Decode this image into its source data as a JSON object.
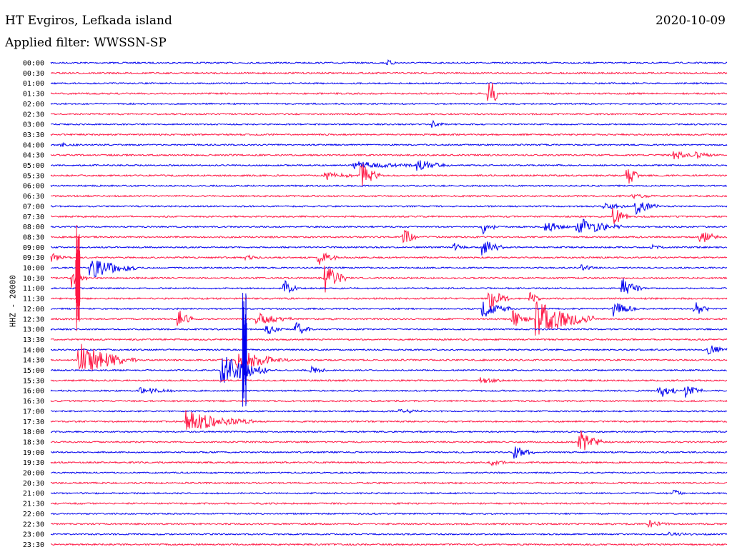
{
  "header": {
    "station": "HT Evgiros, Lefkada island",
    "date": "2020-10-09",
    "filter": "Applied filter: WWSSN-SP"
  },
  "colors": {
    "trace_a": "#0000ee",
    "trace_b": "#ff1744",
    "background": "#ffffff"
  },
  "chart_data": {
    "type": "line",
    "title": "HT Evgiros, Lefkada island",
    "date": "2020-10-09",
    "ylabel": "HHZ - 20000",
    "row_labels": [
      "00:00",
      "00:30",
      "01:00",
      "01:30",
      "02:00",
      "02:30",
      "03:00",
      "03:30",
      "04:00",
      "04:30",
      "05:00",
      "05:30",
      "06:00",
      "06:30",
      "07:00",
      "07:30",
      "08:00",
      "08:30",
      "09:00",
      "09:30",
      "10:00",
      "10:30",
      "11:00",
      "11:30",
      "12:00",
      "12:30",
      "13:00",
      "13:30",
      "14:00",
      "14:30",
      "15:00",
      "15:30",
      "16:00",
      "16:30",
      "17:00",
      "17:30",
      "18:00",
      "18:30",
      "19:00",
      "19:30",
      "20:00",
      "20:30",
      "21:00",
      "21:30",
      "22:00",
      "22:30",
      "23:00",
      "23:30"
    ],
    "row_minutes": 30,
    "grid": false,
    "events": [
      {
        "row": 3,
        "minute": 19.4,
        "amp": 3.5,
        "dur": 0.4
      },
      {
        "row": 0,
        "minute": 15.0,
        "amp": 0.3,
        "dur": 0.5
      },
      {
        "row": 6,
        "minute": 17.0,
        "amp": 0.4,
        "dur": 0.5
      },
      {
        "row": 8,
        "minute": 0.5,
        "amp": 0.2,
        "dur": 0.8
      },
      {
        "row": 9,
        "minute": 27.7,
        "amp": 0.6,
        "dur": 1.0
      },
      {
        "row": 9,
        "minute": 28.7,
        "amp": 0.4,
        "dur": 0.8
      },
      {
        "row": 10,
        "minute": 13.5,
        "amp": 0.5,
        "dur": 3.0
      },
      {
        "row": 10,
        "minute": 16.3,
        "amp": 0.7,
        "dur": 1.5
      },
      {
        "row": 11,
        "minute": 12.2,
        "amp": 0.6,
        "dur": 1.2
      },
      {
        "row": 11,
        "minute": 13.8,
        "amp": 1.8,
        "dur": 0.8
      },
      {
        "row": 11,
        "minute": 25.6,
        "amp": 1.6,
        "dur": 0.5
      },
      {
        "row": 13,
        "minute": 25.8,
        "amp": 0.3,
        "dur": 1.0
      },
      {
        "row": 14,
        "minute": 24.6,
        "amp": 0.5,
        "dur": 1.0
      },
      {
        "row": 14,
        "minute": 26.0,
        "amp": 1.0,
        "dur": 1.0
      },
      {
        "row": 15,
        "minute": 25.0,
        "amp": 1.3,
        "dur": 0.6
      },
      {
        "row": 16,
        "minute": 22.0,
        "amp": 0.8,
        "dur": 1.0
      },
      {
        "row": 16,
        "minute": 23.4,
        "amp": 1.3,
        "dur": 2.0
      },
      {
        "row": 16,
        "minute": 19.2,
        "amp": 1.4,
        "dur": 0.5
      },
      {
        "row": 17,
        "minute": 15.7,
        "amp": 1.5,
        "dur": 0.5
      },
      {
        "row": 17,
        "minute": 28.8,
        "amp": 1.3,
        "dur": 0.8
      },
      {
        "row": 18,
        "minute": 17.9,
        "amp": 0.6,
        "dur": 0.5
      },
      {
        "row": 18,
        "minute": 19.2,
        "amp": 1.3,
        "dur": 0.9
      },
      {
        "row": 18,
        "minute": 26.7,
        "amp": 0.3,
        "dur": 0.5
      },
      {
        "row": 19,
        "minute": 0.1,
        "amp": 0.6,
        "dur": 0.6
      },
      {
        "row": 19,
        "minute": 8.7,
        "amp": 0.3,
        "dur": 0.6
      },
      {
        "row": 19,
        "minute": 11.9,
        "amp": 1.2,
        "dur": 0.8
      },
      {
        "row": 20,
        "minute": 1.8,
        "amp": 1.5,
        "dur": 2.0
      },
      {
        "row": 20,
        "minute": 23.6,
        "amp": 0.5,
        "dur": 0.5
      },
      {
        "row": 21,
        "minute": 1.0,
        "amp": 1.5,
        "dur": 0.6
      },
      {
        "row": 21,
        "minute": 12.2,
        "amp": 2.0,
        "dur": 0.9
      },
      {
        "row": 22,
        "minute": 10.4,
        "amp": 1.0,
        "dur": 0.6
      },
      {
        "row": 22,
        "minute": 25.4,
        "amp": 1.3,
        "dur": 0.8
      },
      {
        "row": 23,
        "minute": 19.5,
        "amp": 1.5,
        "dur": 0.8
      },
      {
        "row": 23,
        "minute": 21.3,
        "amp": 1.0,
        "dur": 0.5
      },
      {
        "row": 24,
        "minute": 19.2,
        "amp": 1.3,
        "dur": 1.2
      },
      {
        "row": 24,
        "minute": 25.0,
        "amp": 1.0,
        "dur": 1.0
      },
      {
        "row": 24,
        "minute": 28.6,
        "amp": 1.0,
        "dur": 0.6
      },
      {
        "row": 25,
        "minute": 5.7,
        "amp": 1.2,
        "dur": 0.6
      },
      {
        "row": 25,
        "minute": 9.2,
        "amp": 0.8,
        "dur": 1.5
      },
      {
        "row": 25,
        "minute": 20.5,
        "amp": 1.2,
        "dur": 0.8
      },
      {
        "row": 25,
        "minute": 21.6,
        "amp": 2.5,
        "dur": 2.5
      },
      {
        "row": 26,
        "minute": 9.6,
        "amp": 0.7,
        "dur": 0.7
      },
      {
        "row": 26,
        "minute": 10.9,
        "amp": 1.0,
        "dur": 0.6
      },
      {
        "row": 28,
        "minute": 29.2,
        "amp": 0.7,
        "dur": 0.9
      },
      {
        "row": 29,
        "minute": 1.3,
        "amp": 2.4,
        "dur": 2.5
      },
      {
        "row": 29,
        "minute": 8.6,
        "amp": 0.7,
        "dur": 2.0
      },
      {
        "row": 29,
        "minute": 8.3,
        "amp": 1.2,
        "dur": 1.5
      },
      {
        "row": 30,
        "minute": 7.6,
        "amp": 2.5,
        "dur": 2.0
      },
      {
        "row": 30,
        "minute": 11.6,
        "amp": 0.5,
        "dur": 0.7
      },
      {
        "row": 31,
        "minute": 19.1,
        "amp": 0.4,
        "dur": 1.0
      },
      {
        "row": 32,
        "minute": 4.0,
        "amp": 0.5,
        "dur": 1.5
      },
      {
        "row": 32,
        "minute": 27.0,
        "amp": 1.3,
        "dur": 0.8
      },
      {
        "row": 32,
        "minute": 28.2,
        "amp": 0.9,
        "dur": 0.7
      },
      {
        "row": 34,
        "minute": 15.5,
        "amp": 0.3,
        "dur": 1.0
      },
      {
        "row": 35,
        "minute": 6.0,
        "amp": 1.5,
        "dur": 3.0
      },
      {
        "row": 37,
        "minute": 23.5,
        "amp": 1.6,
        "dur": 1.0
      },
      {
        "row": 38,
        "minute": 20.6,
        "amp": 0.9,
        "dur": 0.9
      },
      {
        "row": 39,
        "minute": 19.5,
        "amp": 0.4,
        "dur": 0.7
      },
      {
        "row": 42,
        "minute": 27.7,
        "amp": 0.4,
        "dur": 0.4
      },
      {
        "row": 45,
        "minute": 26.6,
        "amp": 0.4,
        "dur": 1.0
      },
      {
        "row": 46,
        "minute": 27.5,
        "amp": 0.3,
        "dur": 1.0
      }
    ],
    "teleseismic": [
      {
        "row": 21,
        "minute": 1.2,
        "amp": 6.0,
        "dur": 1.5
      },
      {
        "row": 28,
        "minute": 8.6,
        "amp": 7.0,
        "dur": 4.0
      }
    ]
  }
}
